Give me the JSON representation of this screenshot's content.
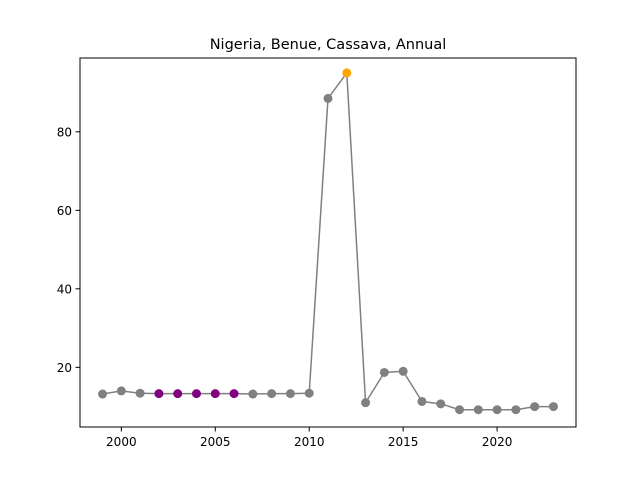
{
  "chart_data": {
    "type": "line",
    "title": "Nigeria, Benue, Cassava, Annual",
    "xlabel": "",
    "ylabel": "",
    "xlim": [
      1997.8,
      2024.2
    ],
    "ylim": [
      4.8,
      98.8
    ],
    "x_ticks": [
      2000,
      2005,
      2010,
      2015,
      2020
    ],
    "y_ticks": [
      20,
      40,
      60,
      80
    ],
    "grid": false,
    "legend": "none",
    "line_color": "#808080",
    "series": [
      {
        "x": [
          1999,
          2000,
          2001,
          2002,
          2003,
          2004,
          2005,
          2006,
          2007,
          2008,
          2009,
          2010,
          2011,
          2012,
          2013,
          2014,
          2015,
          2016,
          2017,
          2018,
          2019,
          2020,
          2021,
          2022,
          2023
        ],
        "y": [
          13.2,
          14.0,
          13.4,
          13.3,
          13.3,
          13.3,
          13.3,
          13.3,
          13.2,
          13.3,
          13.3,
          13.4,
          88.5,
          95.0,
          11.0,
          18.7,
          19.0,
          11.3,
          10.7,
          9.2,
          9.2,
          9.2,
          9.2,
          10.0,
          10.0
        ],
        "colors": [
          "#808080",
          "#808080",
          "#808080",
          "#800080",
          "#800080",
          "#800080",
          "#800080",
          "#800080",
          "#808080",
          "#808080",
          "#808080",
          "#808080",
          "#808080",
          "#ffa500",
          "#808080",
          "#808080",
          "#808080",
          "#808080",
          "#808080",
          "#808080",
          "#808080",
          "#808080",
          "#808080",
          "#808080",
          "#808080"
        ]
      }
    ]
  }
}
